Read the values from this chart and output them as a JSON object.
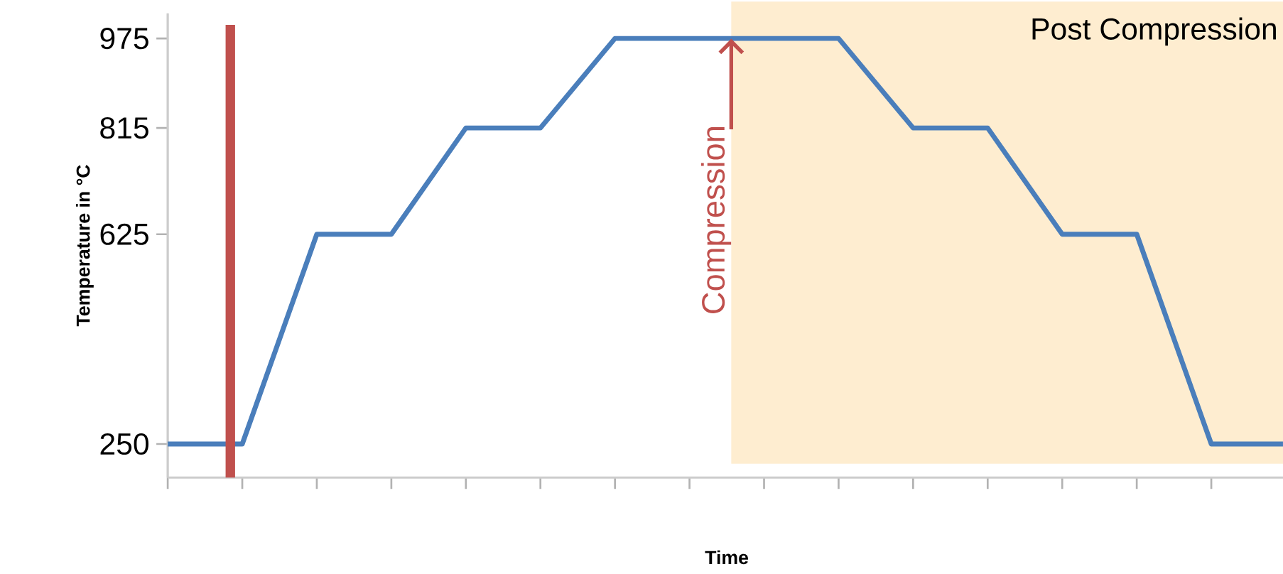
{
  "chart_data": {
    "type": "line",
    "xlabel": "Time",
    "ylabel": "Temperature in °C",
    "categories": [
      null,
      null,
      null,
      null,
      null,
      null,
      null,
      null,
      null,
      null,
      null,
      null,
      null,
      null,
      null,
      null
    ],
    "series": [
      {
        "color": "#4a7ebb",
        "values": [
          250,
          250,
          625,
          625,
          815,
          815,
          975,
          975,
          975,
          975,
          815,
          815,
          625,
          625,
          250,
          250
        ]
      }
    ],
    "ylim": [
      190,
      1020
    ],
    "yticks": [
      250,
      625,
      815,
      975
    ],
    "tick_labels": "y",
    "marker": "none",
    "line_style": "solid",
    "annotations": [
      "Compression",
      "Post Compression"
    ]
  }
}
